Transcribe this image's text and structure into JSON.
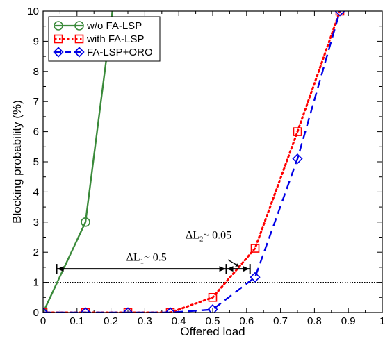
{
  "chart_data": {
    "type": "line",
    "xlabel": "Offered load",
    "ylabel": "Blocking probability (%)",
    "xlim": [
      0,
      1
    ],
    "ylim": [
      0,
      10
    ],
    "xticks": [
      "0",
      "0.1",
      "0.2",
      "0.3",
      "0.4",
      "0.5",
      "0.6",
      "0.7",
      "0.8",
      "0.9",
      "1"
    ],
    "yticks": [
      "0",
      "1",
      "2",
      "3",
      "4",
      "5",
      "6",
      "7",
      "8",
      "9",
      "10"
    ],
    "grid": false,
    "legend_position": "top-left",
    "series": [
      {
        "name": "w/o FA-LSP",
        "color": "#3a8a3a",
        "line": "solid",
        "marker": "circle",
        "x": [
          0,
          0.125,
          0.25
        ],
        "y": [
          0,
          3.0,
          14.0
        ]
      },
      {
        "name": "with FA-LSP",
        "color": "#ff0000",
        "line": "dotted",
        "marker": "square",
        "x": [
          0,
          0.125,
          0.25,
          0.375,
          0.5,
          0.625,
          0.75,
          0.875
        ],
        "y": [
          0,
          0,
          0,
          0,
          0.5,
          2.13,
          6.0,
          10.0
        ]
      },
      {
        "name": "FA-LSP+ORO",
        "color": "#0000e6",
        "line": "dashed",
        "marker": "diamond",
        "x": [
          0,
          0.125,
          0.25,
          0.375,
          0.5,
          0.625,
          0.75,
          0.875
        ],
        "y": [
          0,
          0,
          0,
          0,
          0.1,
          1.17,
          5.1,
          10.0
        ]
      }
    ],
    "reference_line": {
      "y": 1,
      "style": "dotted",
      "color": "#000000"
    },
    "annotations": [
      {
        "id": "dl1",
        "main": "ΔL",
        "sub": "1",
        "rest": "~ 0.5",
        "x_from": 0.04,
        "x_to": 0.54,
        "y": 1.45
      },
      {
        "id": "dl2",
        "main": "ΔL",
        "sub": "2",
        "rest": "~ 0.05",
        "x_from": 0.54,
        "x_to": 0.61,
        "y": 1.45
      }
    ]
  }
}
